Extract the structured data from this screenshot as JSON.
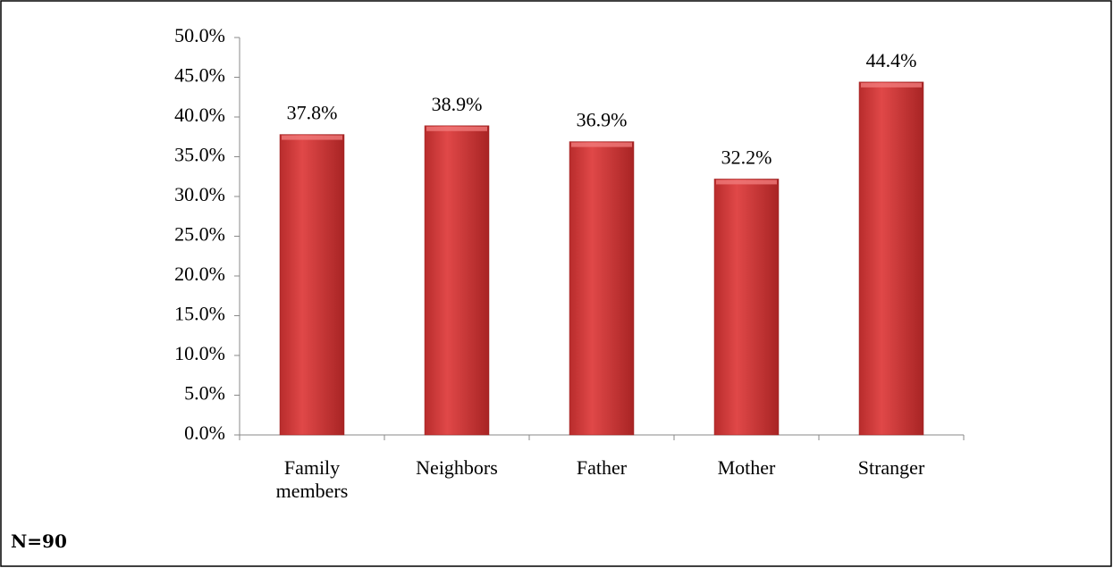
{
  "chart_data": {
    "type": "bar",
    "categories": [
      "Family members",
      "Neighbors",
      "Father",
      "Mother",
      "Stranger"
    ],
    "values": [
      37.8,
      38.9,
      36.9,
      32.2,
      44.4
    ],
    "value_labels": [
      "37.8%",
      "38.9%",
      "36.9%",
      "32.2%",
      "44.4%"
    ],
    "color": "#c83434",
    "ylim": [
      0,
      50
    ],
    "yticks": [
      {
        "value": 0,
        "label": "0.0%"
      },
      {
        "value": 5,
        "label": "5.0%"
      },
      {
        "value": 10,
        "label": "10.0%"
      },
      {
        "value": 15,
        "label": "15.0%"
      },
      {
        "value": 20,
        "label": "20.0%"
      },
      {
        "value": 25,
        "label": "25.0%"
      },
      {
        "value": 30,
        "label": "30.0%"
      },
      {
        "value": 35,
        "label": "35.0%"
      },
      {
        "value": 40,
        "label": "40.0%"
      },
      {
        "value": 45,
        "label": "45.0%"
      },
      {
        "value": 50,
        "label": "50.0%"
      }
    ],
    "grid": false,
    "note": "N=90"
  }
}
